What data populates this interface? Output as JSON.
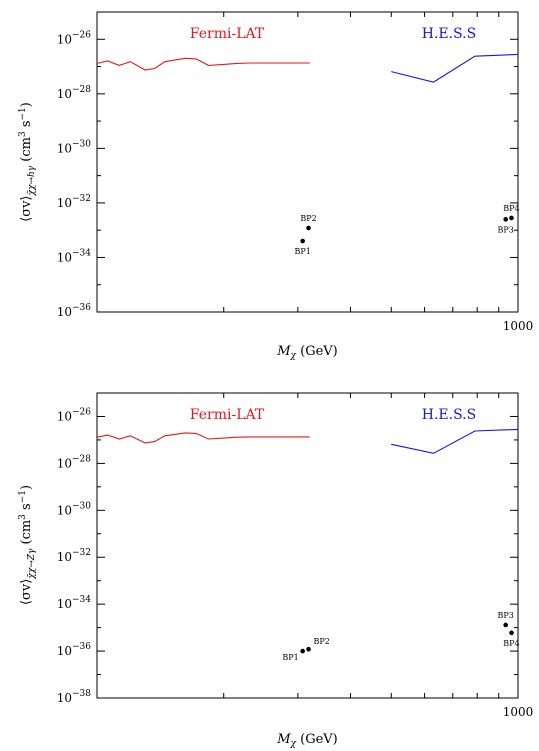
{
  "chart_data": [
    {
      "type": "line",
      "xlabel_main": "M",
      "xlabel_sub": "χ",
      "xlabel_unit": " (GeV)",
      "ylabel_pre": "⟨σv⟩",
      "ylabel_sub": "χ̄χ→hγ",
      "ylabel_unit": " (cm",
      "ylabel_unit_exp": "3",
      "ylabel_unit_mid": " s",
      "ylabel_unit_exp2": "−1",
      "ylabel_unit_end": ")",
      "xscale": "log",
      "yscale": "log",
      "xlim": [
        100,
        1000
      ],
      "ylim": [
        1e-36,
        1e-25
      ],
      "x_tick_labels": [
        {
          "value": 1000,
          "label": "1000"
        }
      ],
      "y_tick_labels": [
        {
          "exp": -36,
          "base": "10",
          "sup": "−36"
        },
        {
          "exp": -34,
          "base": "10",
          "sup": "−34"
        },
        {
          "exp": -32,
          "base": "10",
          "sup": "−32"
        },
        {
          "exp": -30,
          "base": "10",
          "sup": "−30"
        },
        {
          "exp": -28,
          "base": "10",
          "sup": "−28"
        },
        {
          "exp": -26,
          "base": "10",
          "sup": "−26"
        }
      ],
      "series": [
        {
          "name": "Fermi-LAT",
          "color": "#e8161b",
          "x": [
            100,
            106,
            113,
            120,
            130,
            137,
            145,
            162,
            172,
            184,
            200,
            215,
            230,
            255,
            285,
            320
          ],
          "y": [
            1.3e-27,
            1.6e-27,
            1.1e-27,
            1.5e-27,
            7.5e-28,
            8.5e-28,
            1.5e-27,
            2e-27,
            1.9e-27,
            1.1e-27,
            1.2e-27,
            1.3e-27,
            1.35e-27,
            1.35e-27,
            1.35e-27,
            1.35e-27
          ]
        },
        {
          "name": "H.E.S.S",
          "color": "#1515e6",
          "x": [
            500,
            630,
            790,
            1000
          ],
          "y": [
            6.5e-28,
            2.7e-28,
            2.4e-27,
            2.8e-27
          ]
        }
      ],
      "points": [
        {
          "label": "BP1",
          "x": 308,
          "y": 4e-34,
          "anchor": "below"
        },
        {
          "label": "BP2",
          "x": 318,
          "y": 1.2e-33,
          "anchor": "above"
        },
        {
          "label": "BP3",
          "x": 935,
          "y": 2.5e-33,
          "anchor": "below"
        },
        {
          "label": "BP4",
          "x": 965,
          "y": 2.8e-33,
          "anchor": "above"
        }
      ]
    },
    {
      "type": "line",
      "xlabel_main": "M",
      "xlabel_sub": "χ",
      "xlabel_unit": " (GeV)",
      "ylabel_pre": "⟨σv⟩",
      "ylabel_sub": "χ̄χ→Zγ",
      "ylabel_unit": " (cm",
      "ylabel_unit_exp": "3",
      "ylabel_unit_mid": " s",
      "ylabel_unit_exp2": "−1",
      "ylabel_unit_end": ")",
      "xscale": "log",
      "yscale": "log",
      "xlim": [
        100,
        1000
      ],
      "ylim": [
        1e-38,
        1e-25
      ],
      "x_tick_labels": [
        {
          "value": 1000,
          "label": "1000"
        }
      ],
      "y_tick_labels": [
        {
          "exp": -38,
          "base": "10",
          "sup": "−38"
        },
        {
          "exp": -36,
          "base": "10",
          "sup": "−36"
        },
        {
          "exp": -34,
          "base": "10",
          "sup": "−34"
        },
        {
          "exp": -32,
          "base": "10",
          "sup": "−32"
        },
        {
          "exp": -30,
          "base": "10",
          "sup": "−30"
        },
        {
          "exp": -28,
          "base": "10",
          "sup": "−28"
        },
        {
          "exp": -26,
          "base": "10",
          "sup": "−26"
        }
      ],
      "series": [
        {
          "name": "Fermi-LAT",
          "color": "#e8161b",
          "x": [
            100,
            106,
            113,
            120,
            130,
            137,
            145,
            162,
            172,
            184,
            200,
            215,
            230,
            255,
            285,
            320
          ],
          "y": [
            1.3e-27,
            1.6e-27,
            1.1e-27,
            1.5e-27,
            7.5e-28,
            8.5e-28,
            1.5e-27,
            2e-27,
            1.9e-27,
            1.1e-27,
            1.2e-27,
            1.3e-27,
            1.35e-27,
            1.35e-27,
            1.35e-27,
            1.35e-27
          ]
        },
        {
          "name": "H.E.S.S",
          "color": "#1515e6",
          "x": [
            500,
            630,
            790,
            1000
          ],
          "y": [
            6.5e-28,
            2.7e-28,
            2.4e-27,
            2.8e-27
          ]
        }
      ],
      "points": [
        {
          "label": "BP1",
          "x": 308,
          "y": 1e-36,
          "anchor": "below-left"
        },
        {
          "label": "BP2",
          "x": 318,
          "y": 1.2e-36,
          "anchor": "above-right"
        },
        {
          "label": "BP3",
          "x": 935,
          "y": 1.3e-35,
          "anchor": "above"
        },
        {
          "label": "BP4",
          "x": 965,
          "y": 6e-36,
          "anchor": "below"
        }
      ]
    }
  ]
}
